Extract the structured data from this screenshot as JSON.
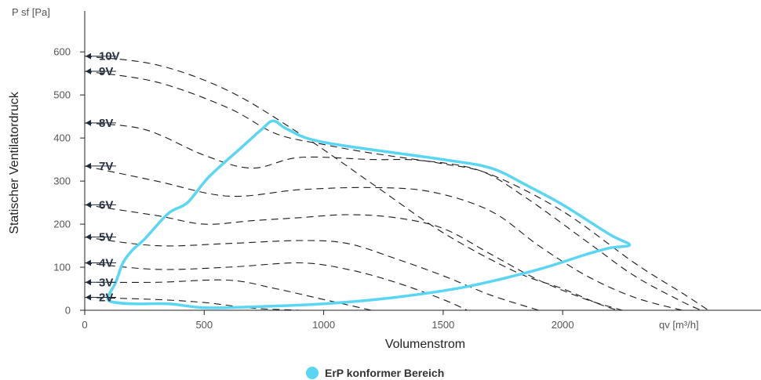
{
  "chart_data": {
    "type": "line",
    "title": "",
    "xlabel": "Volumenstrom",
    "ylabel": "Statischer Ventilatordruck",
    "x_unit_label": "qv [m³/h]",
    "y_unit_label": "P sf [Pa]",
    "xlim": [
      0,
      2830
    ],
    "ylim": [
      0,
      695
    ],
    "x_ticks": [
      0,
      500,
      1000,
      1500,
      2000
    ],
    "y_ticks": [
      0,
      100,
      200,
      300,
      400,
      500,
      600
    ],
    "grid": false,
    "series": [
      {
        "name": "10V",
        "points": [
          [
            0,
            590
          ],
          [
            300,
            570
          ],
          [
            600,
            510
          ],
          [
            900,
            410
          ],
          [
            1200,
            295
          ],
          [
            1500,
            180
          ],
          [
            1800,
            90
          ],
          [
            2000,
            50
          ],
          [
            2150,
            15
          ],
          [
            2230,
            0
          ]
        ]
      },
      {
        "name": "9V",
        "points": [
          [
            0,
            555
          ],
          [
            300,
            530
          ],
          [
            600,
            470
          ],
          [
            800,
            410
          ],
          [
            1000,
            385
          ],
          [
            1200,
            365
          ],
          [
            1500,
            340
          ],
          [
            1700,
            315
          ],
          [
            2000,
            230
          ],
          [
            2300,
            110
          ],
          [
            2500,
            40
          ],
          [
            2610,
            0
          ]
        ]
      },
      {
        "name": "8V",
        "points": [
          [
            0,
            435
          ],
          [
            250,
            420
          ],
          [
            500,
            360
          ],
          [
            700,
            330
          ],
          [
            900,
            355
          ],
          [
            1200,
            350
          ],
          [
            1400,
            348
          ],
          [
            1650,
            325
          ],
          [
            1850,
            260
          ],
          [
            2100,
            160
          ],
          [
            2300,
            80
          ],
          [
            2500,
            20
          ],
          [
            2580,
            0
          ]
        ]
      },
      {
        "name": "7V",
        "points": [
          [
            0,
            335
          ],
          [
            300,
            300
          ],
          [
            600,
            265
          ],
          [
            900,
            280
          ],
          [
            1200,
            285
          ],
          [
            1450,
            275
          ],
          [
            1700,
            230
          ],
          [
            1900,
            150
          ],
          [
            2100,
            80
          ],
          [
            2300,
            30
          ],
          [
            2500,
            0
          ]
        ]
      },
      {
        "name": "6V",
        "points": [
          [
            0,
            245
          ],
          [
            300,
            220
          ],
          [
            500,
            200
          ],
          [
            700,
            208
          ],
          [
            900,
            215
          ],
          [
            1100,
            222
          ],
          [
            1300,
            215
          ],
          [
            1500,
            190
          ],
          [
            1700,
            130
          ],
          [
            1900,
            70
          ],
          [
            2100,
            25
          ],
          [
            2250,
            0
          ]
        ]
      },
      {
        "name": "5V",
        "points": [
          [
            0,
            170
          ],
          [
            300,
            150
          ],
          [
            600,
            155
          ],
          [
            900,
            162
          ],
          [
            1100,
            155
          ],
          [
            1300,
            120
          ],
          [
            1500,
            80
          ],
          [
            1700,
            35
          ],
          [
            1900,
            0
          ]
        ]
      },
      {
        "name": "4V",
        "points": [
          [
            0,
            110
          ],
          [
            300,
            95
          ],
          [
            600,
            100
          ],
          [
            900,
            110
          ],
          [
            1100,
            95
          ],
          [
            1300,
            65
          ],
          [
            1500,
            25
          ],
          [
            1600,
            0
          ]
        ]
      },
      {
        "name": "3V",
        "points": [
          [
            0,
            65
          ],
          [
            300,
            65
          ],
          [
            600,
            70
          ],
          [
            800,
            50
          ],
          [
            1000,
            25
          ],
          [
            1200,
            0
          ]
        ]
      },
      {
        "name": "2V",
        "points": [
          [
            0,
            30
          ],
          [
            300,
            25
          ],
          [
            500,
            18
          ],
          [
            700,
            5
          ],
          [
            900,
            0
          ]
        ]
      }
    ],
    "voltage_labels": [
      "10V",
      "9V",
      "8V",
      "7V",
      "6V",
      "5V",
      "4V",
      "3V",
      "2V"
    ],
    "erp_area": {
      "name": "ErP konformer Bereich",
      "color": "#5ad6f5",
      "points": [
        [
          95,
          30
        ],
        [
          110,
          20
        ],
        [
          200,
          15
        ],
        [
          350,
          15
        ],
        [
          500,
          6
        ],
        [
          700,
          8
        ],
        [
          1000,
          15
        ],
        [
          1300,
          30
        ],
        [
          1600,
          55
        ],
        [
          1900,
          95
        ],
        [
          2100,
          130
        ],
        [
          2200,
          145
        ],
        [
          2280,
          152
        ],
        [
          2200,
          175
        ],
        [
          2000,
          245
        ],
        [
          1850,
          290
        ],
        [
          1700,
          330
        ],
        [
          1500,
          350
        ],
        [
          1000,
          390
        ],
        [
          850,
          420
        ],
        [
          790,
          440
        ],
        [
          740,
          420
        ],
        [
          660,
          380
        ],
        [
          520,
          310
        ],
        [
          430,
          250
        ],
        [
          350,
          225
        ],
        [
          250,
          165
        ],
        [
          200,
          140
        ],
        [
          160,
          110
        ],
        [
          130,
          65
        ],
        [
          110,
          45
        ],
        [
          95,
          30
        ]
      ]
    },
    "legend": {
      "position": "bottom",
      "items": [
        "ErP konformer Bereich"
      ]
    }
  }
}
